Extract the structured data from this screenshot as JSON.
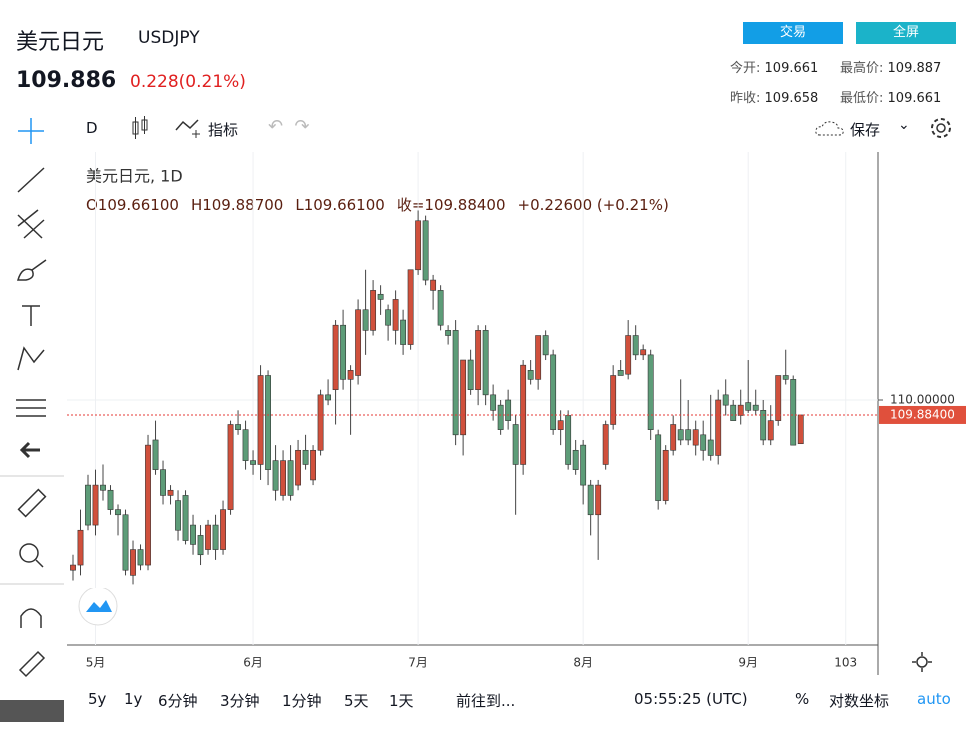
{
  "header": {
    "name": "美元日元",
    "symbol": "USDJPY",
    "price": "109.886",
    "change": "0.228(0.21%)",
    "buttons": [
      "交易",
      "全屏"
    ],
    "stats": [
      {
        "label": "今开:",
        "value": "109.661"
      },
      {
        "label": "最高价:",
        "value": "109.887"
      },
      {
        "label": "昨收:",
        "value": "109.658"
      },
      {
        "label": "最低价:",
        "value": "109.661"
      }
    ]
  },
  "toolbar": {
    "interval": "D",
    "indicators": "指标",
    "save": "保存"
  },
  "chart_data": {
    "type": "candlestick",
    "legend_title": "美元日元, 1D",
    "legend_values": [
      "O109.66100",
      "H109.88700",
      "L109.66100",
      "收=109.88400",
      "+0.22600 (+0.21%)"
    ],
    "up_color": "#d0503c",
    "down_color": "#5d9c78",
    "ohlc": [
      [
        108.68,
        108.8,
        108.6,
        108.72
      ],
      [
        108.72,
        109.15,
        108.64,
        108.99
      ],
      [
        109.34,
        109.42,
        108.99,
        109.03
      ],
      [
        109.03,
        109.46,
        108.95,
        109.34
      ],
      [
        109.34,
        109.5,
        109.22,
        109.3
      ],
      [
        109.3,
        109.34,
        109.11,
        109.15
      ],
      [
        109.15,
        109.19,
        108.95,
        109.11
      ],
      [
        109.11,
        109.15,
        108.64,
        108.68
      ],
      [
        108.64,
        108.91,
        108.57,
        108.84
      ],
      [
        108.84,
        108.88,
        108.68,
        108.72
      ],
      [
        108.72,
        109.73,
        108.68,
        109.65
      ],
      [
        109.69,
        109.84,
        109.42,
        109.46
      ],
      [
        109.46,
        109.53,
        109.19,
        109.26
      ],
      [
        109.26,
        109.34,
        109.19,
        109.3
      ],
      [
        109.22,
        109.3,
        108.91,
        108.99
      ],
      [
        109.26,
        109.3,
        108.88,
        108.91
      ],
      [
        109.03,
        109.11,
        108.8,
        108.88
      ],
      [
        108.95,
        109.03,
        108.72,
        108.8
      ],
      [
        108.84,
        109.07,
        108.8,
        109.03
      ],
      [
        109.03,
        109.11,
        108.76,
        108.84
      ],
      [
        108.84,
        109.22,
        108.8,
        109.15
      ],
      [
        109.15,
        109.84,
        109.11,
        109.81
      ],
      [
        109.81,
        109.92,
        109.73,
        109.77
      ],
      [
        109.77,
        109.84,
        109.46,
        109.53
      ],
      [
        109.53,
        109.61,
        109.42,
        109.5
      ],
      [
        109.5,
        110.27,
        109.38,
        110.19
      ],
      [
        110.19,
        110.23,
        109.34,
        109.46
      ],
      [
        109.53,
        109.65,
        109.22,
        109.3
      ],
      [
        109.26,
        109.61,
        109.22,
        109.53
      ],
      [
        109.53,
        109.65,
        109.22,
        109.26
      ],
      [
        109.34,
        109.69,
        109.3,
        109.61
      ],
      [
        109.61,
        109.73,
        109.46,
        109.5
      ],
      [
        109.38,
        109.65,
        109.34,
        109.61
      ],
      [
        109.61,
        110.08,
        109.57,
        110.04
      ],
      [
        110.04,
        110.16,
        109.96,
        110
      ],
      [
        110.08,
        110.62,
        109.81,
        110.58
      ],
      [
        110.58,
        110.7,
        110.08,
        110.16
      ],
      [
        110.16,
        110.27,
        109.73,
        110.23
      ],
      [
        110.19,
        110.78,
        110.12,
        110.7
      ],
      [
        110.7,
        111.01,
        110.35,
        110.54
      ],
      [
        110.54,
        110.93,
        110.5,
        110.85
      ],
      [
        110.82,
        110.89,
        110.66,
        110.78
      ],
      [
        110.7,
        110.74,
        110.46,
        110.58
      ],
      [
        110.54,
        110.85,
        110.43,
        110.78
      ],
      [
        110.62,
        110.7,
        110.35,
        110.43
      ],
      [
        110.43,
        111.01,
        110.39,
        111.01
      ],
      [
        111.01,
        111.47,
        110.97,
        111.39
      ],
      [
        111.39,
        111.43,
        110.89,
        110.93
      ],
      [
        110.85,
        110.97,
        110.7,
        110.93
      ],
      [
        110.85,
        110.89,
        110.54,
        110.58
      ],
      [
        110.54,
        110.58,
        110.43,
        110.5
      ],
      [
        110.54,
        110.62,
        109.65,
        109.73
      ],
      [
        109.73,
        110.31,
        109.57,
        110.31
      ],
      [
        110.31,
        110.39,
        110.04,
        110.08
      ],
      [
        110.08,
        110.58,
        109.96,
        110.54
      ],
      [
        110.54,
        110.58,
        109.96,
        110.04
      ],
      [
        110.04,
        110.12,
        109.84,
        109.92
      ],
      [
        109.96,
        110,
        109.73,
        109.77
      ],
      [
        110,
        110.08,
        109.77,
        109.84
      ],
      [
        109.81,
        109.88,
        109.11,
        109.5
      ],
      [
        109.5,
        110.31,
        109.42,
        110.27
      ],
      [
        110.23,
        110.31,
        110.12,
        110.16
      ],
      [
        110.16,
        110.5,
        110.08,
        110.5
      ],
      [
        110.5,
        110.54,
        110.31,
        110.35
      ],
      [
        110.35,
        110.39,
        109.73,
        109.77
      ],
      [
        109.77,
        109.92,
        109.65,
        109.84
      ],
      [
        109.88,
        109.92,
        109.46,
        109.5
      ],
      [
        109.61,
        109.69,
        109.42,
        109.46
      ],
      [
        109.65,
        109.69,
        109.19,
        109.34
      ],
      [
        109.34,
        109.38,
        108.95,
        109.11
      ],
      [
        109.11,
        109.38,
        108.76,
        109.34
      ],
      [
        109.5,
        109.84,
        109.46,
        109.81
      ],
      [
        109.81,
        110.27,
        109.77,
        110.19
      ],
      [
        110.23,
        110.31,
        110.19,
        110.19
      ],
      [
        110.2,
        110.62,
        110.16,
        110.5
      ],
      [
        110.5,
        110.58,
        110.31,
        110.35
      ],
      [
        110.35,
        110.43,
        110.31,
        110.39
      ],
      [
        110.35,
        110.39,
        109.69,
        109.77
      ],
      [
        109.73,
        109.77,
        109.15,
        109.22
      ],
      [
        109.22,
        109.65,
        109.19,
        109.61
      ],
      [
        109.61,
        109.88,
        109.57,
        109.81
      ],
      [
        109.77,
        110.16,
        109.65,
        109.69
      ],
      [
        109.77,
        110,
        109.65,
        109.69
      ],
      [
        109.65,
        109.84,
        109.57,
        109.77
      ],
      [
        109.73,
        109.84,
        109.53,
        109.61
      ],
      [
        109.69,
        110.04,
        109.53,
        109.57
      ],
      [
        109.57,
        110.08,
        109.5,
        110
      ],
      [
        110.04,
        110.16,
        109.88,
        109.96
      ],
      [
        109.96,
        110,
        109.84,
        109.84
      ],
      [
        109.88,
        110.08,
        109.81,
        109.96
      ],
      [
        109.98,
        110.31,
        109.9,
        109.92
      ],
      [
        109.96,
        110.08,
        109.88,
        109.92
      ],
      [
        109.92,
        110,
        109.65,
        109.69
      ],
      [
        109.69,
        109.96,
        109.65,
        109.84
      ],
      [
        109.84,
        110.19,
        109.8,
        110.19
      ],
      [
        110.19,
        110.39,
        110.12,
        110.16
      ],
      [
        110.16,
        110.19,
        109.65,
        109.65
      ],
      [
        109.661,
        109.887,
        109.661,
        109.884
      ]
    ],
    "xlim": [
      -0.8,
      107.3
    ],
    "xticks": [
      {
        "value": 3,
        "label": "5月"
      },
      {
        "value": 24,
        "label": "6月"
      },
      {
        "value": 46,
        "label": "7月"
      },
      {
        "value": 68,
        "label": "8月"
      },
      {
        "value": 90,
        "label": "9月"
      },
      103
    ],
    "ylim": [
      108.1,
      111.9
    ],
    "yticks": [
      {
        "value": 110,
        "label": "110.00000"
      }
    ],
    "price_line": {
      "value": 109.884,
      "label": "109.88400"
    },
    "grid": true
  },
  "footer": {
    "ranges": [
      "5y",
      "1y",
      "6分钟",
      "3分钟",
      "1分钟",
      "5天",
      "1天"
    ],
    "goto": "前往到...",
    "time": "05:55:25 (UTC)",
    "percent": "%",
    "log": "对数坐标",
    "auto": "auto"
  }
}
